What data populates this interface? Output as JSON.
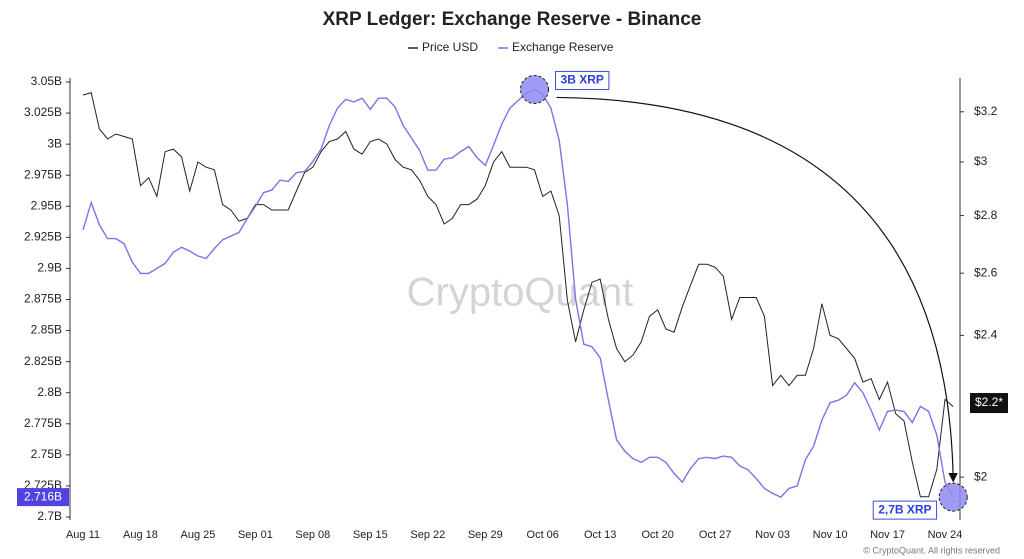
{
  "chart_data": {
    "type": "line",
    "title": "XRP Ledger: Exchange Reserve - Binance",
    "categories": [
      "Aug 11",
      null,
      null,
      null,
      null,
      null,
      null,
      "Aug 18",
      null,
      null,
      null,
      null,
      null,
      null,
      "Aug 25",
      null,
      null,
      null,
      null,
      null,
      null,
      "Sep 01",
      null,
      null,
      null,
      null,
      null,
      null,
      "Sep 08",
      null,
      null,
      null,
      null,
      null,
      null,
      "Sep 15",
      null,
      null,
      null,
      null,
      null,
      null,
      "Sep 22",
      null,
      null,
      null,
      null,
      null,
      null,
      "Sep 29",
      null,
      null,
      null,
      null,
      null,
      null,
      "Oct 06",
      null,
      null,
      null,
      null,
      null,
      null,
      "Oct 13",
      null,
      null,
      null,
      null,
      null,
      null,
      "Oct 20",
      null,
      null,
      null,
      null,
      null,
      null,
      "Oct 27",
      null,
      null,
      null,
      null,
      null,
      null,
      "Nov 03",
      null,
      null,
      null,
      null,
      null,
      null,
      "Nov 10",
      null,
      null,
      null,
      null,
      null,
      null,
      "Nov 17",
      null,
      null,
      null,
      null,
      null,
      null,
      "Nov 24",
      null
    ],
    "series": [
      {
        "name": "Price USD",
        "color": "#222222",
        "axis": "y2",
        "values": [
          3.27,
          3.28,
          3.13,
          3.09,
          3.11,
          3.1,
          3.09,
          2.91,
          2.94,
          2.87,
          3.04,
          3.05,
          3.02,
          2.89,
          3.0,
          2.98,
          2.97,
          2.84,
          2.82,
          2.78,
          2.79,
          2.84,
          2.84,
          2.82,
          2.82,
          2.82,
          2.89,
          2.96,
          2.98,
          3.04,
          3.08,
          3.09,
          3.12,
          3.05,
          3.03,
          3.08,
          3.09,
          3.07,
          3.01,
          2.98,
          2.97,
          2.93,
          2.87,
          2.84,
          2.77,
          2.79,
          2.84,
          2.84,
          2.86,
          2.91,
          3.0,
          3.04,
          2.98,
          2.98,
          2.98,
          2.97,
          2.87,
          2.89,
          2.8,
          2.51,
          2.38,
          2.48,
          2.57,
          2.58,
          2.45,
          2.36,
          2.32,
          2.34,
          2.38,
          2.46,
          2.48,
          2.42,
          2.41,
          2.49,
          2.56,
          2.63,
          2.63,
          2.62,
          2.59,
          2.45,
          2.52,
          2.52,
          2.52,
          2.46,
          2.25,
          2.28,
          2.25,
          2.28,
          2.28,
          2.36,
          2.5,
          2.4,
          2.39,
          2.36,
          2.33,
          2.26,
          2.27,
          2.21,
          2.26,
          2.17,
          2.15,
          2.04,
          1.95,
          1.95,
          2.02,
          2.21,
          2.19
        ]
      },
      {
        "name": "Exchange Reserve",
        "color": "#7b73e6",
        "axis": "y",
        "values": [
          2.931,
          2.953,
          2.935,
          2.924,
          2.924,
          2.92,
          2.905,
          2.896,
          2.896,
          2.9,
          2.904,
          2.913,
          2.917,
          2.914,
          2.91,
          2.908,
          2.916,
          2.923,
          2.926,
          2.929,
          2.94,
          2.95,
          2.961,
          2.963,
          2.971,
          2.97,
          2.977,
          2.978,
          2.986,
          2.996,
          3.015,
          3.029,
          3.036,
          3.034,
          3.037,
          3.028,
          3.037,
          3.037,
          3.03,
          3.015,
          3.005,
          2.995,
          2.979,
          2.979,
          2.988,
          2.989,
          2.994,
          2.998,
          2.989,
          2.983,
          2.999,
          3.016,
          3.029,
          3.035,
          3.041,
          3.044,
          3.04,
          3.029,
          3.003,
          2.951,
          2.875,
          2.839,
          2.837,
          2.828,
          2.794,
          2.762,
          2.753,
          2.747,
          2.744,
          2.748,
          2.748,
          2.744,
          2.735,
          2.728,
          2.739,
          2.747,
          2.748,
          2.747,
          2.749,
          2.748,
          2.741,
          2.738,
          2.731,
          2.723,
          2.719,
          2.716,
          2.723,
          2.725,
          2.746,
          2.757,
          2.778,
          2.792,
          2.794,
          2.798,
          2.808,
          2.8,
          2.786,
          2.77,
          2.785,
          2.786,
          2.785,
          2.776,
          2.789,
          2.785,
          2.766,
          2.728,
          2.716
        ]
      }
    ],
    "ylim": [
      2.7,
      3.05
    ],
    "yticks": [
      {
        "value": 2.7,
        "label": "2.7B"
      },
      {
        "value": 2.725,
        "label": "2.725B"
      },
      {
        "value": 2.75,
        "label": "2.75B"
      },
      {
        "value": 2.775,
        "label": "2.775B"
      },
      {
        "value": 2.8,
        "label": "2.8B"
      },
      {
        "value": 2.825,
        "label": "2.825B"
      },
      {
        "value": 2.85,
        "label": "2.85B"
      },
      {
        "value": 2.875,
        "label": "2.875B"
      },
      {
        "value": 2.9,
        "label": "2.9B"
      },
      {
        "value": 2.925,
        "label": "2.925B"
      },
      {
        "value": 2.95,
        "label": "2.95B"
      },
      {
        "value": 2.975,
        "label": "2.975B"
      },
      {
        "value": 3,
        "label": "3B"
      },
      {
        "value": 3.025,
        "label": "3.025B"
      },
      {
        "value": 3.05,
        "label": "3.05B"
      }
    ],
    "y2lim": [
      1.9,
      3.325
    ],
    "y2log": true,
    "y2ticks": [
      {
        "value": 2,
        "label": "$2"
      },
      {
        "value": 2.4,
        "label": "$2.4"
      },
      {
        "value": 2.6,
        "label": "$2.6"
      },
      {
        "value": 2.8,
        "label": "$2.8"
      },
      {
        "value": 3,
        "label": "$3"
      },
      {
        "value": 3.2,
        "label": "$3.2"
      }
    ],
    "last_value_labels": {
      "y": {
        "value": 2.716,
        "label": "2.716B",
        "color": "#5143e0"
      },
      "y2": {
        "value": 2.2,
        "label": "$2.2*",
        "color": "#111111"
      }
    },
    "annotations": [
      "3B XRP",
      "2,7B XRP"
    ],
    "watermark": "CryptoQuant",
    "footer": "© CryptoQuant. All rights reserved"
  }
}
